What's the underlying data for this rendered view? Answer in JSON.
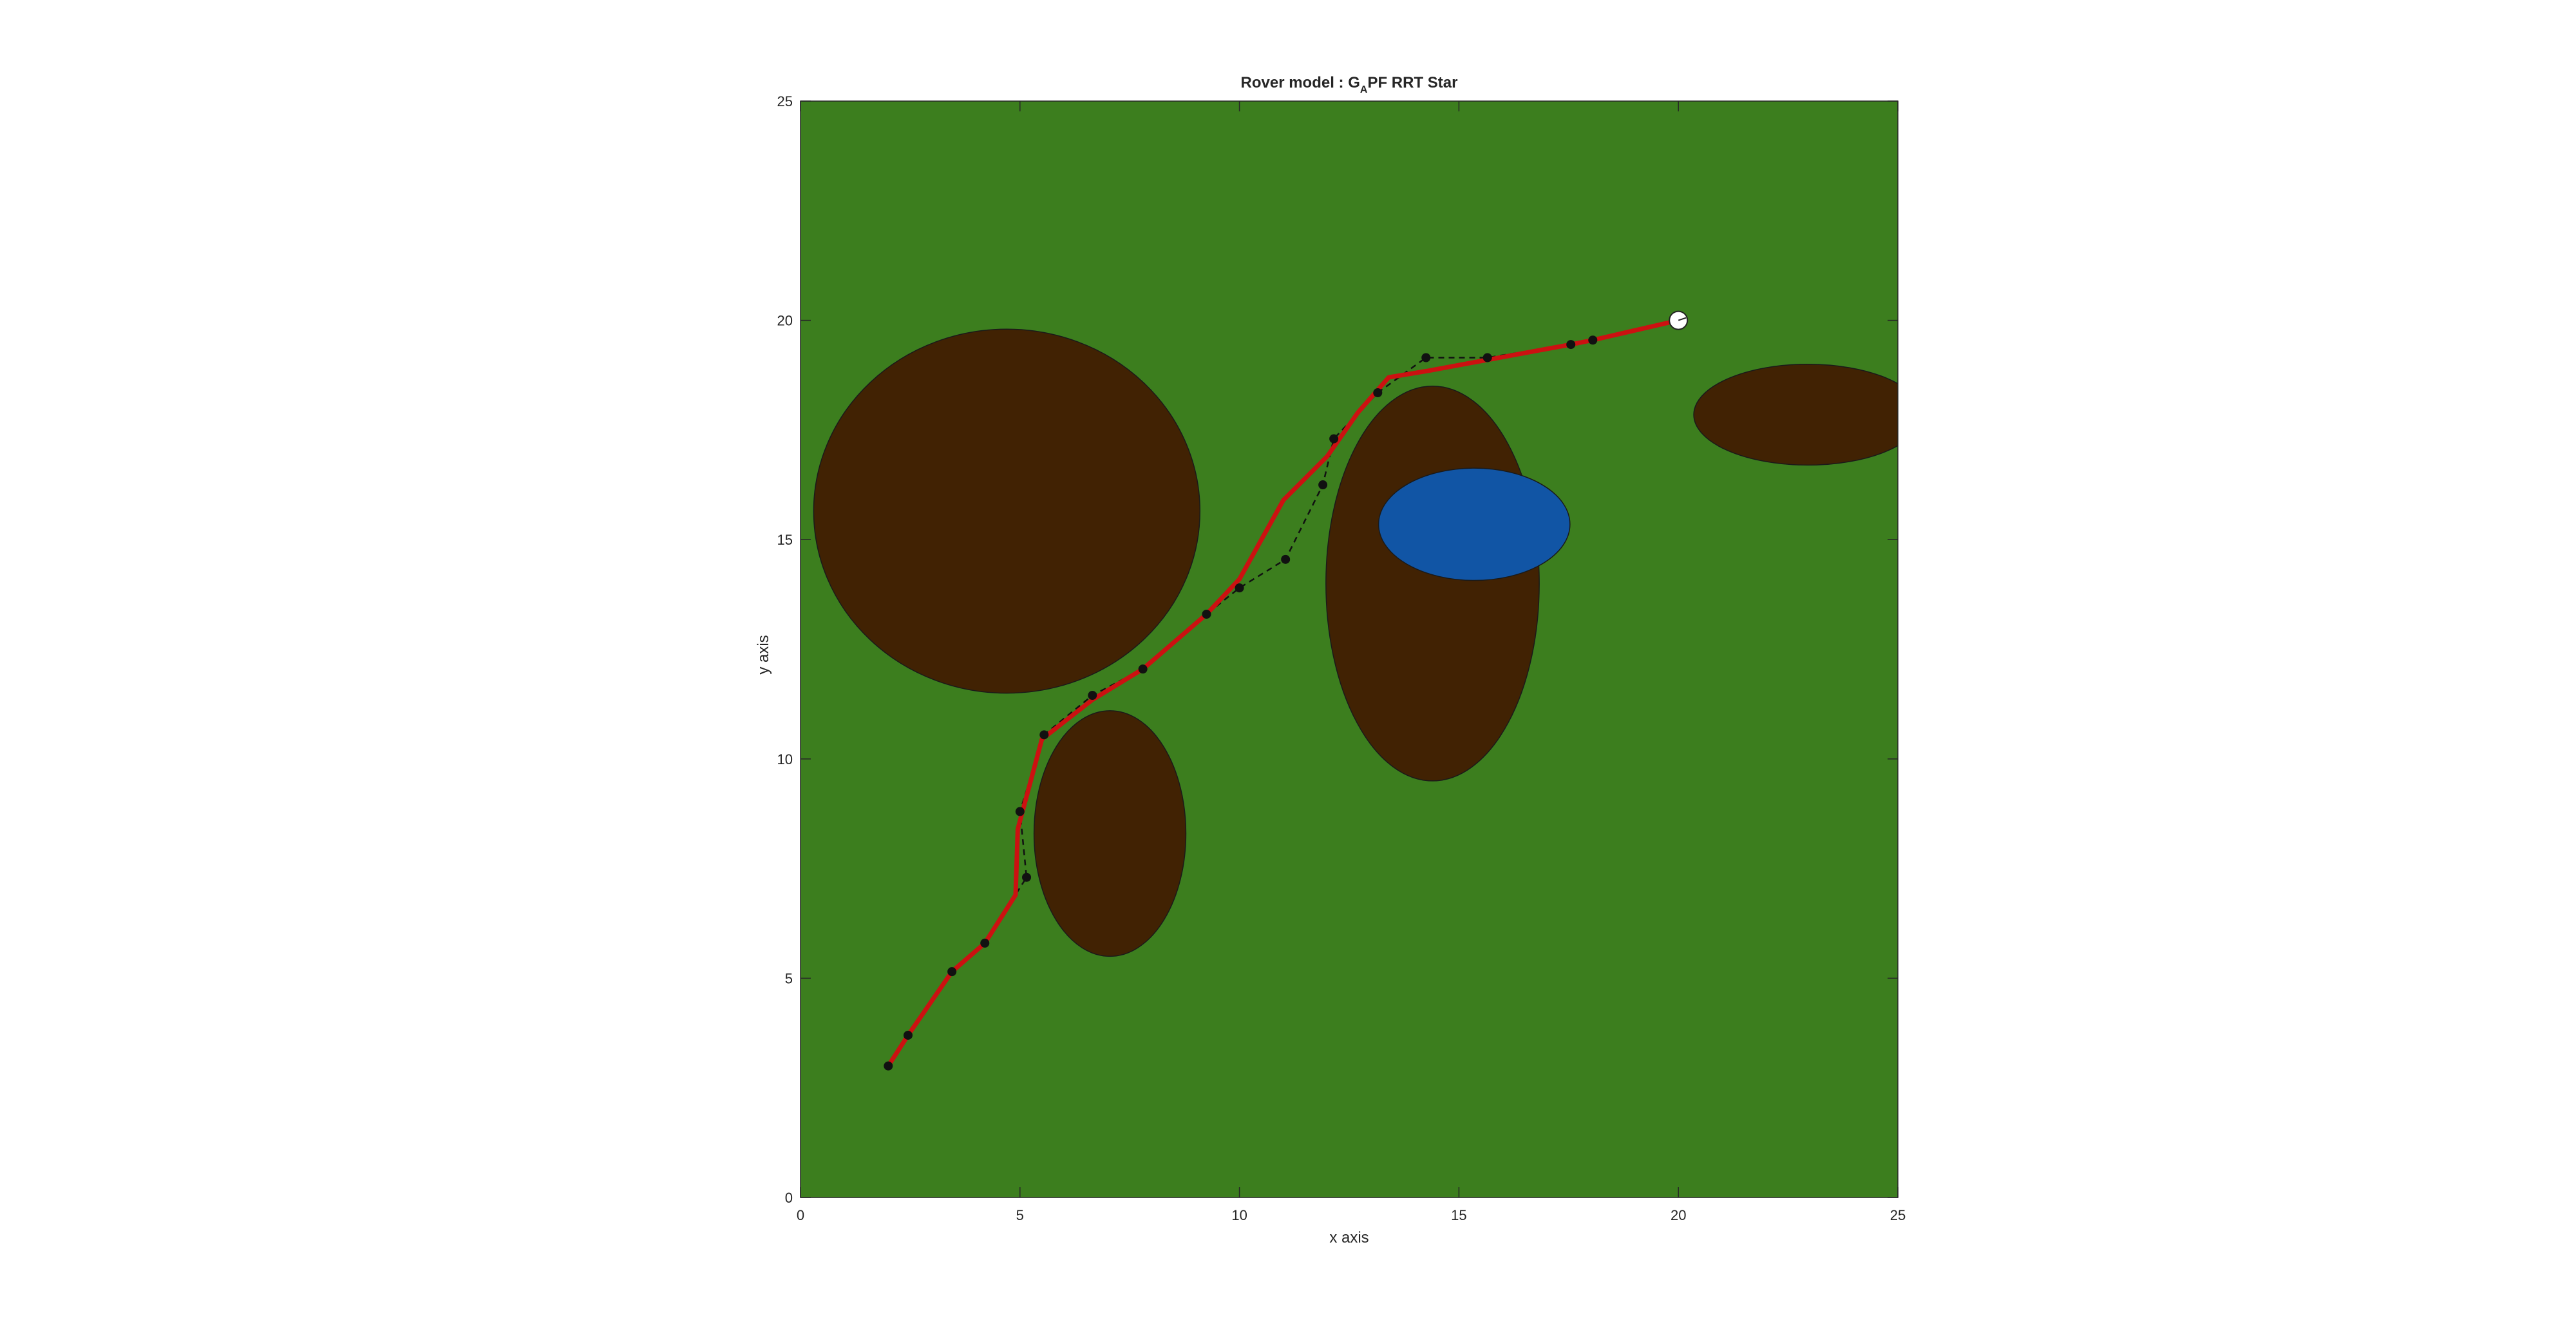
{
  "chart_data": {
    "type": "scatter",
    "title": {
      "prefix": "Rover model : G",
      "subscript": "A",
      "suffix": "PF RRT Star"
    },
    "xlabel": "x axis",
    "ylabel": "y axis",
    "xlim": [
      0,
      25
    ],
    "ylim": [
      0,
      25
    ],
    "xticks": [
      0,
      5,
      10,
      15,
      20,
      25
    ],
    "yticks": [
      0,
      5,
      10,
      15,
      20,
      25
    ],
    "grid": false,
    "colors": {
      "terrain": "#3c7e1e",
      "obstacle": "#412203",
      "water": "#1155a5",
      "smoothed_path": "#cc1111",
      "raw_path": "#111111",
      "goal_fill": "#ffffff"
    },
    "obstacles": [
      {
        "kind": "terrain",
        "cx": 4.7,
        "cy": 15.65,
        "rx": 4.4,
        "ry": 4.15
      },
      {
        "kind": "terrain",
        "cx": 7.05,
        "cy": 8.3,
        "rx": 1.73,
        "ry": 2.8
      },
      {
        "kind": "terrain",
        "cx": 14.4,
        "cy": 14.0,
        "rx": 2.43,
        "ry": 4.5
      },
      {
        "kind": "terrain",
        "cx": 22.95,
        "cy": 17.85,
        "rx": 2.6,
        "ry": 1.15
      },
      {
        "kind": "water",
        "cx": 15.35,
        "cy": 15.35,
        "rx": 2.18,
        "ry": 1.28
      }
    ],
    "series": [
      {
        "style": "dashed-with-markers",
        "x": [
          2.0,
          2.45,
          3.45,
          4.2,
          5.15,
          5.0,
          5.55,
          6.65,
          7.8,
          9.25,
          10.0,
          11.05,
          11.9,
          12.15,
          13.15,
          14.25,
          15.65,
          17.55,
          18.05,
          20.0
        ],
        "y": [
          3.0,
          3.7,
          5.15,
          5.8,
          7.3,
          8.8,
          10.55,
          11.45,
          12.05,
          13.3,
          13.9,
          14.55,
          16.25,
          17.3,
          18.35,
          19.15,
          19.15,
          19.45,
          19.55,
          20.0
        ]
      },
      {
        "style": "solid-thick",
        "x": [
          2.0,
          2.45,
          3.45,
          4.2,
          4.9,
          4.95,
          5.5,
          6.65,
          7.8,
          9.25,
          10.0,
          11.0,
          12.0,
          12.7,
          13.4,
          14.3,
          15.65,
          17.55,
          18.05,
          20.0
        ],
        "y": [
          3.0,
          3.7,
          5.15,
          5.8,
          6.9,
          8.4,
          10.45,
          11.35,
          12.05,
          13.3,
          14.1,
          15.9,
          16.9,
          17.9,
          18.7,
          18.85,
          19.1,
          19.45,
          19.55,
          20.0
        ]
      }
    ],
    "goal": {
      "x": 20.0,
      "y": 20.0
    }
  }
}
